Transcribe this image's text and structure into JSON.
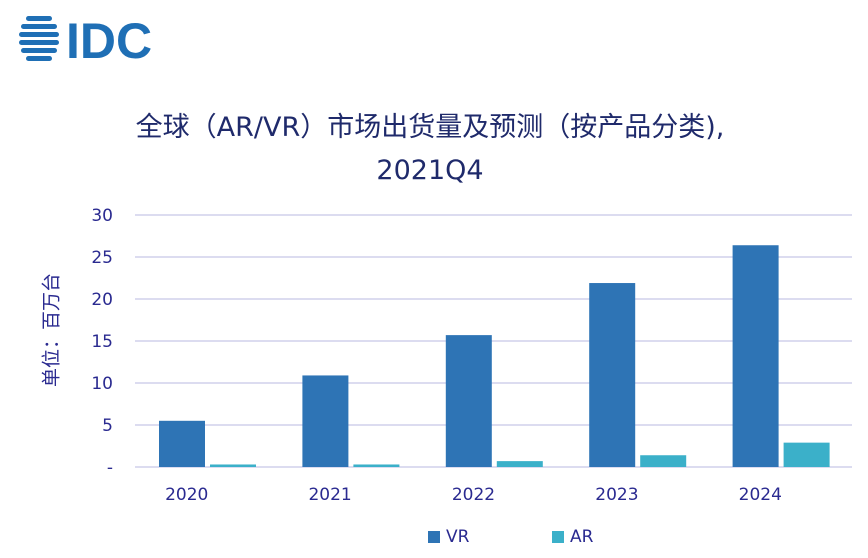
{
  "logo": {
    "text": "IDC"
  },
  "title": {
    "line1": "全球（AR/VR）市场出货量及预测（按产品分类),",
    "line2": "2021Q4"
  },
  "ylabel": "单位：百万台",
  "colors": {
    "VR": "#2e74b5",
    "AR": "#3bb0c9",
    "text": "#2a2a90",
    "grid": "#c7c7e6",
    "logo": "#1f6fb5"
  },
  "chart_data": {
    "type": "bar",
    "title": "全球（AR/VR）市场出货量及预测（按产品分类), 2021Q4",
    "xlabel": "",
    "ylabel": "单位：百万台",
    "categories": [
      "2020",
      "2021",
      "2022",
      "2023",
      "2024"
    ],
    "series": [
      {
        "name": "VR",
        "values": [
          5.5,
          10.9,
          15.7,
          21.9,
          26.4
        ]
      },
      {
        "name": "AR",
        "values": [
          0.3,
          0.3,
          0.7,
          1.4,
          2.9
        ]
      }
    ],
    "ylim": [
      0,
      30
    ],
    "yticks": [
      0,
      5,
      10,
      15,
      20,
      25,
      30
    ],
    "ytick_labels": [
      "-",
      "5",
      "10",
      "15",
      "20",
      "25",
      "30"
    ],
    "grid": true,
    "legend_position": "bottom"
  }
}
